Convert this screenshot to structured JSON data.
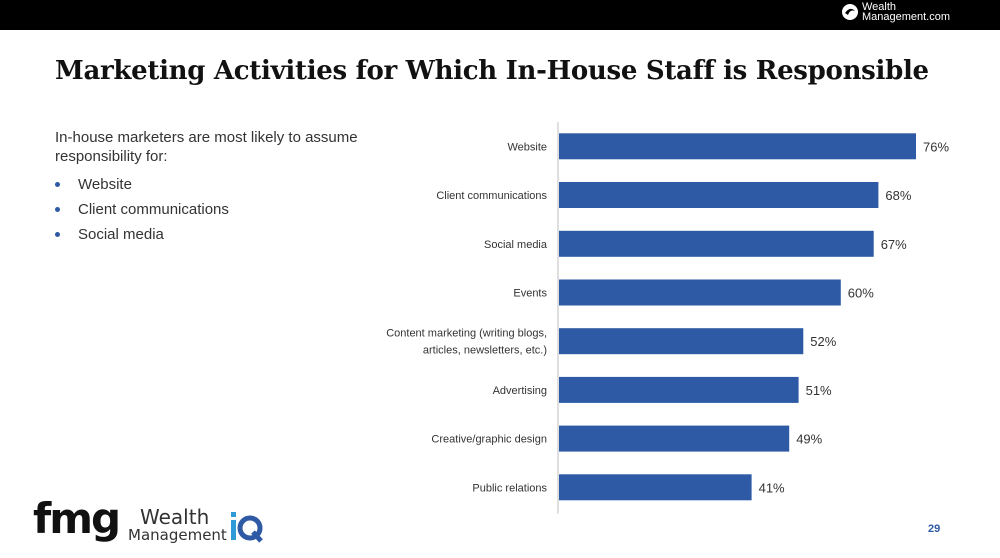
{
  "header": {
    "brand_line1": "Wealth",
    "brand_line2": "Management.com"
  },
  "slide": {
    "title": "Marketing Activities for Which In-House Staff is Responsible",
    "intro": "In-house marketers are most likely to assume responsibility for:",
    "bullets": [
      "Website",
      "Client communications",
      "Social media"
    ],
    "page_number": "29"
  },
  "footer": {
    "fmg_logo": "fmg",
    "wm_line1": "Wealth",
    "wm_line2": "Management",
    "iq_mark": "iQ"
  },
  "colors": {
    "bar": "#2e5aa5",
    "axis": "#bfbfbf"
  },
  "chart_data": {
    "type": "bar",
    "orientation": "horizontal",
    "title": "",
    "xlabel": "",
    "ylabel": "",
    "xlim": [
      0,
      76
    ],
    "grid": false,
    "categories": [
      "Website",
      "Client communications",
      "Social media",
      "Events",
      "Content marketing (writing blogs, articles, newsletters, etc.)",
      "Advertising",
      "Creative/graphic design",
      "Public relations"
    ],
    "category_lines": [
      [
        "Website"
      ],
      [
        "Client communications"
      ],
      [
        "Social media"
      ],
      [
        "Events"
      ],
      [
        "Content marketing (writing blogs,",
        "articles, newsletters, etc.)"
      ],
      [
        "Advertising"
      ],
      [
        "Creative/graphic design"
      ],
      [
        "Public relations"
      ]
    ],
    "values": [
      76,
      68,
      67,
      60,
      52,
      51,
      49,
      41
    ],
    "value_labels": [
      "76%",
      "68%",
      "67%",
      "60%",
      "52%",
      "51%",
      "49%",
      "41%"
    ]
  }
}
